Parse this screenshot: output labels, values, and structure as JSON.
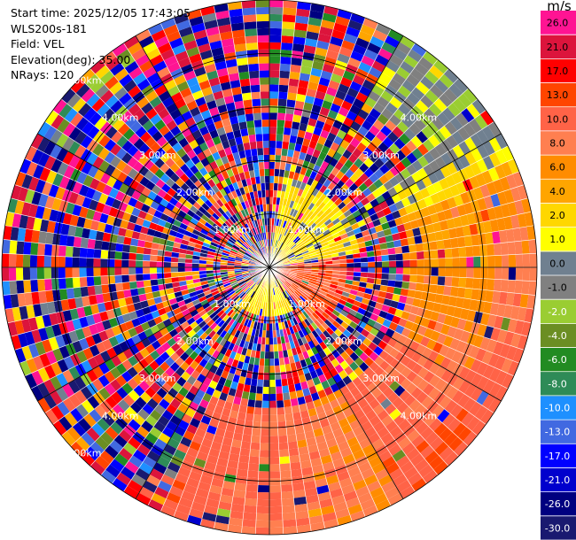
{
  "info": {
    "start_time": "Start time: 2025/12/05 17:43:05",
    "instrument": "WLS200s-181",
    "field": "Field: VEL",
    "elevation": "Elevation(deg): 35.00",
    "nrays": "NRays: 120"
  },
  "chart_data": {
    "type": "ppi",
    "title": "",
    "field": "VEL",
    "units": "m/s",
    "n_rays": 120,
    "elevation_deg": 35.0,
    "range_rings_km": [
      1.0,
      2.0,
      3.0,
      4.0,
      5.0
    ],
    "range_labels": [
      "1.00km",
      "2.00km",
      "3.00km",
      "4.00km",
      "5.00km"
    ],
    "spoke_angles_deg": [
      0,
      30,
      60,
      90,
      120,
      150,
      180,
      210,
      240,
      270,
      300,
      330
    ],
    "max_range_km": 5.0,
    "colorbar": {
      "unit_label": "m/s",
      "boundaries": [
        -30.0,
        -26.0,
        -21.0,
        -17.0,
        -13.0,
        -10.0,
        -8.0,
        -6.0,
        -4.0,
        -2.0,
        -1.0,
        0.0,
        1.0,
        2.0,
        4.0,
        6.0,
        8.0,
        10.0,
        13.0,
        17.0,
        21.0,
        26.0,
        30.0
      ],
      "tick_labels": [
        "-30.0",
        "-26.0",
        "-21.0",
        "-17.0",
        "-13.0",
        "-10.0",
        "-8.0",
        "-6.0",
        "-4.0",
        "-2.0",
        "-1.0",
        "0.0",
        "1.0",
        "2.0",
        "4.0",
        "6.0",
        "8.0",
        "10.0",
        "13.0",
        "17.0",
        "21.0",
        "26.0"
      ],
      "colors": [
        "#191970",
        "#000080",
        "#0000CD",
        "#0000FF",
        "#4169E1",
        "#1E90FF",
        "#2E8B57",
        "#228B22",
        "#6B8E23",
        "#9ACD32",
        "#808080",
        "#708090",
        "#FFFF00",
        "#FFD700",
        "#FFA500",
        "#FF8C00",
        "#FF7F50",
        "#FF6347",
        "#FF4500",
        "#FF0000",
        "#DC143C",
        "#FF1493"
      ]
    },
    "notes": "Radial velocity PPI: noisy multi-colored field with coherent positive (yellow-orange-red) sector from NE through SE to S at larger ranges, yellow-green wedge near center to the NE."
  }
}
